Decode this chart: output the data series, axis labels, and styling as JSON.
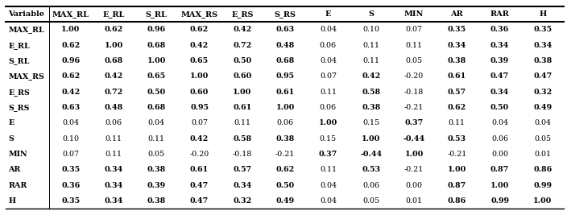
{
  "columns": [
    "Variable",
    "MAX_RL",
    "E_RL",
    "S_RL",
    "MAX_RS",
    "E_RS",
    "S_RS",
    "E",
    "S",
    "MIN",
    "AR",
    "RAR",
    "H"
  ],
  "rows": [
    [
      "MAX_RL",
      "1.00",
      "0.62",
      "0.96",
      "0.62",
      "0.42",
      "0.63",
      "0.04",
      "0.10",
      "0.07",
      "0.35",
      "0.36",
      "0.35"
    ],
    [
      "E_RL",
      "0.62",
      "1.00",
      "0.68",
      "0.42",
      "0.72",
      "0.48",
      "0.06",
      "0.11",
      "0.11",
      "0.34",
      "0.34",
      "0.34"
    ],
    [
      "S_RL",
      "0.96",
      "0.68",
      "1.00",
      "0.65",
      "0.50",
      "0.68",
      "0.04",
      "0.11",
      "0.05",
      "0.38",
      "0.39",
      "0.38"
    ],
    [
      "MAX_RS",
      "0.62",
      "0.42",
      "0.65",
      "1.00",
      "0.60",
      "0.95",
      "0.07",
      "0.42",
      "-0.20",
      "0.61",
      "0.47",
      "0.47"
    ],
    [
      "E_RS",
      "0.42",
      "0.72",
      "0.50",
      "0.60",
      "1.00",
      "0.61",
      "0.11",
      "0.58",
      "-0.18",
      "0.57",
      "0.34",
      "0.32"
    ],
    [
      "S_RS",
      "0.63",
      "0.48",
      "0.68",
      "0.95",
      "0.61",
      "1.00",
      "0.06",
      "0.38",
      "-0.21",
      "0.62",
      "0.50",
      "0.49"
    ],
    [
      "E",
      "0.04",
      "0.06",
      "0.04",
      "0.07",
      "0.11",
      "0.06",
      "1.00",
      "0.15",
      "0.37",
      "0.11",
      "0.04",
      "0.04"
    ],
    [
      "S",
      "0.10",
      "0.11",
      "0.11",
      "0.42",
      "0.58",
      "0.38",
      "0.15",
      "1.00",
      "-0.44",
      "0.53",
      "0.06",
      "0.05"
    ],
    [
      "MIN",
      "0.07",
      "0.11",
      "0.05",
      "-0.20",
      "-0.18",
      "-0.21",
      "0.37",
      "-0.44",
      "1.00",
      "-0.21",
      "0.00",
      "0.01"
    ],
    [
      "AR",
      "0.35",
      "0.34",
      "0.38",
      "0.61",
      "0.57",
      "0.62",
      "0.11",
      "0.53",
      "-0.21",
      "1.00",
      "0.87",
      "0.86"
    ],
    [
      "RAR",
      "0.36",
      "0.34",
      "0.39",
      "0.47",
      "0.34",
      "0.50",
      "0.04",
      "0.06",
      "0.00",
      "0.87",
      "1.00",
      "0.99"
    ],
    [
      "H",
      "0.35",
      "0.34",
      "0.38",
      "0.47",
      "0.32",
      "0.49",
      "0.04",
      "0.05",
      "0.01",
      "0.86",
      "0.99",
      "1.00"
    ]
  ],
  "bold_threshold": 0.3,
  "font_size": 6.8,
  "header_font_size": 7.0,
  "font_family": "serif"
}
